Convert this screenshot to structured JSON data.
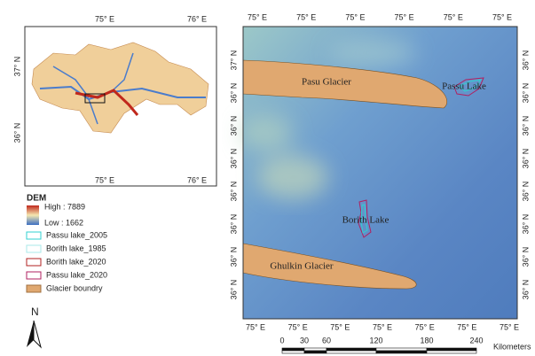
{
  "inset": {
    "top_labels": [
      "75° E",
      "76° E"
    ],
    "left_labels": [
      "37° N",
      "36° N"
    ],
    "bottom_labels": [
      "75° E",
      "76° E"
    ]
  },
  "legend": {
    "title": "DEM",
    "high": "High : 7889",
    "low": "Low : 1662",
    "items": [
      "Passu lake_2005",
      "Borith lake_1985",
      "Borith lake_2020",
      "Passu lake_2020",
      "Glacier boundry"
    ]
  },
  "north": "N",
  "main_map": {
    "top_labels": [
      "75° E",
      "75° E",
      "75° E",
      "75° E",
      "75° E",
      "75° E"
    ],
    "bottom_labels": [
      "75° E",
      "75° E",
      "75° E",
      "75° E",
      "75° E",
      "75° E",
      "75° E"
    ],
    "left_labels": [
      "37° N",
      "36° N",
      "36° N",
      "36° N",
      "36° N",
      "36° N",
      "36° N",
      "36° N"
    ],
    "right_labels": [
      "36° N",
      "36° N",
      "36° N",
      "36° N",
      "36° N",
      "36° N",
      "36° N",
      "36° N"
    ],
    "features": {
      "pasu_glacier": "Pasu Glacier",
      "passu_lake": "Passu Lake",
      "borith_lake": "Borith Lake",
      "ghulkin_glacier": "Ghulkin Glacier"
    }
  },
  "scale_bar": {
    "ticks": [
      "0",
      "30",
      "60",
      "120",
      "180",
      "240"
    ],
    "unit": "Kilometers"
  }
}
